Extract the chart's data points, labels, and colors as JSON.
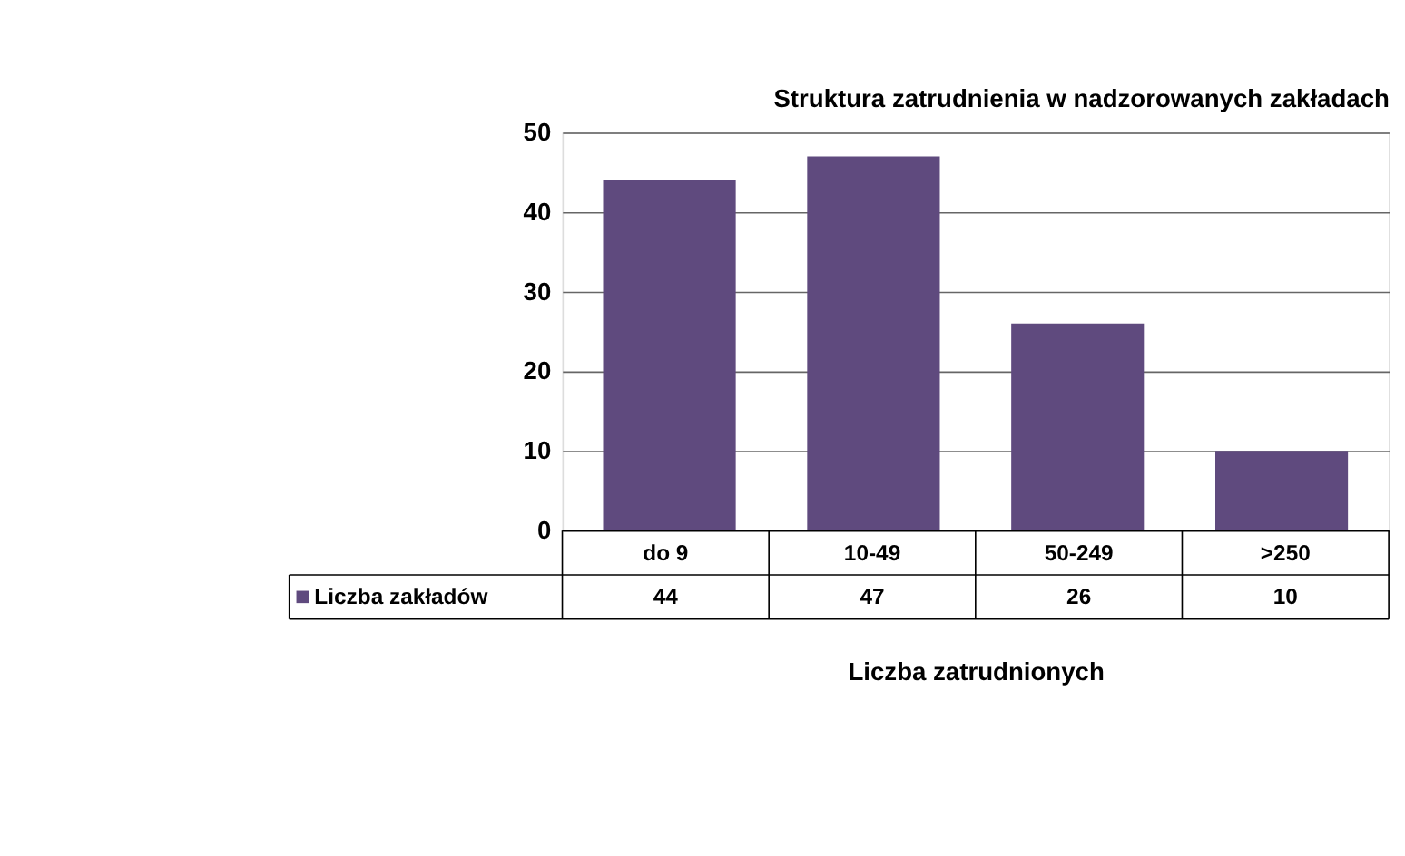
{
  "chart_data": {
    "type": "bar",
    "title": "Struktura zatrudnienia w nadzorowanych zakładach",
    "xlabel": "Liczba zatrudnionych",
    "categories": [
      "do 9",
      "10-49",
      "50-249",
      ">250"
    ],
    "series": [
      {
        "name": "Liczba zakładów",
        "color": "#5f4a7e",
        "values": [
          44,
          47,
          26,
          10
        ]
      }
    ],
    "ylim": [
      0,
      50
    ],
    "yticks": [
      0,
      10,
      20,
      30,
      40,
      50
    ],
    "grid": "y",
    "legend": "bottom left",
    "data_labels": true
  }
}
